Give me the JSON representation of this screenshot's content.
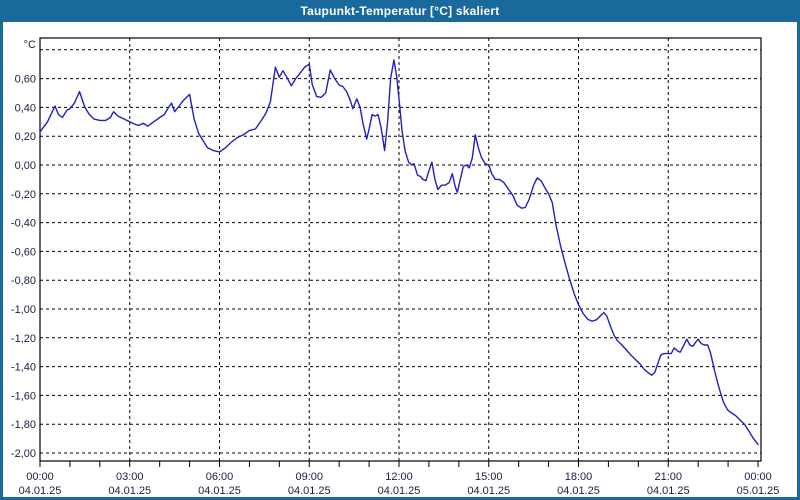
{
  "window": {
    "title": "Taupunkt-Temperatur [°C] skaliert"
  },
  "colors": {
    "titlebar_bg": "#19699c",
    "frame": "#19699c",
    "background": "#ffffff",
    "plot_border": "#000000",
    "grid": "#000000",
    "line": "#2020c0",
    "axis_text": "#16213e"
  },
  "chart_data": {
    "type": "line",
    "title": "Taupunkt-Temperatur [°C] skaliert",
    "ylabel": "°C",
    "xlabel": "",
    "legend": "none",
    "grid": "dashed",
    "ylim": [
      -2.06,
      0.885
    ],
    "xlim_hours": [
      0,
      24
    ],
    "minor_x_tick_every_hours": 1,
    "y_ticks": [
      {
        "v": 0.8,
        "label": ""
      },
      {
        "v": 0.6,
        "label": "0,60"
      },
      {
        "v": 0.4,
        "label": "0,40"
      },
      {
        "v": 0.2,
        "label": "0,20"
      },
      {
        "v": 0.0,
        "label": "0,00"
      },
      {
        "v": -0.2,
        "label": "-0,20"
      },
      {
        "v": -0.4,
        "label": "-0,40"
      },
      {
        "v": -0.6,
        "label": "-0,60"
      },
      {
        "v": -0.8,
        "label": "-0,80"
      },
      {
        "v": -1.0,
        "label": "-1,00"
      },
      {
        "v": -1.2,
        "label": "-1,20"
      },
      {
        "v": -1.4,
        "label": "-1,40"
      },
      {
        "v": -1.6,
        "label": "-1,60"
      },
      {
        "v": -1.8,
        "label": "-1,80"
      },
      {
        "v": -2.0,
        "label": "-2,00"
      }
    ],
    "x_ticks": [
      {
        "h": 0,
        "time": "00:00",
        "date": "04.01.25"
      },
      {
        "h": 3,
        "time": "03:00",
        "date": "04.01.25"
      },
      {
        "h": 6,
        "time": "06:00",
        "date": "04.01.25"
      },
      {
        "h": 9,
        "time": "09:00",
        "date": "04.01.25"
      },
      {
        "h": 12,
        "time": "12:00",
        "date": "04.01.25"
      },
      {
        "h": 15,
        "time": "15:00",
        "date": "04.01.25"
      },
      {
        "h": 18,
        "time": "18:00",
        "date": "04.01.25"
      },
      {
        "h": 21,
        "time": "21:00",
        "date": "04.01.25"
      },
      {
        "h": 24,
        "time": "00:00",
        "date": "05.01.25"
      }
    ],
    "series": [
      {
        "name": "Taupunkt-Temperatur skaliert",
        "color": "#2020c0",
        "points": [
          [
            0.0,
            0.23
          ],
          [
            0.25,
            0.3
          ],
          [
            0.5,
            0.41
          ],
          [
            0.62,
            0.35
          ],
          [
            0.75,
            0.33
          ],
          [
            0.9,
            0.38
          ],
          [
            1.0,
            0.39
          ],
          [
            1.15,
            0.43
          ],
          [
            1.32,
            0.51
          ],
          [
            1.5,
            0.4
          ],
          [
            1.65,
            0.35
          ],
          [
            1.8,
            0.32
          ],
          [
            2.0,
            0.31
          ],
          [
            2.2,
            0.31
          ],
          [
            2.35,
            0.33
          ],
          [
            2.46,
            0.37
          ],
          [
            2.6,
            0.34
          ],
          [
            2.8,
            0.32
          ],
          [
            3.0,
            0.3
          ],
          [
            3.15,
            0.285
          ],
          [
            3.3,
            0.275
          ],
          [
            3.45,
            0.29
          ],
          [
            3.6,
            0.27
          ],
          [
            3.8,
            0.3
          ],
          [
            4.0,
            0.33
          ],
          [
            4.15,
            0.35
          ],
          [
            4.3,
            0.4
          ],
          [
            4.4,
            0.43
          ],
          [
            4.5,
            0.37
          ],
          [
            4.65,
            0.41
          ],
          [
            4.8,
            0.45
          ],
          [
            5.0,
            0.49
          ],
          [
            5.15,
            0.32
          ],
          [
            5.3,
            0.22
          ],
          [
            5.45,
            0.17
          ],
          [
            5.6,
            0.12
          ],
          [
            5.8,
            0.1
          ],
          [
            6.0,
            0.09
          ],
          [
            6.2,
            0.12
          ],
          [
            6.4,
            0.16
          ],
          [
            6.6,
            0.19
          ],
          [
            6.8,
            0.21
          ],
          [
            7.0,
            0.24
          ],
          [
            7.2,
            0.25
          ],
          [
            7.4,
            0.31
          ],
          [
            7.55,
            0.36
          ],
          [
            7.7,
            0.44
          ],
          [
            7.87,
            0.68
          ],
          [
            8.0,
            0.61
          ],
          [
            8.12,
            0.655
          ],
          [
            8.25,
            0.61
          ],
          [
            8.4,
            0.55
          ],
          [
            8.55,
            0.6
          ],
          [
            8.7,
            0.64
          ],
          [
            8.85,
            0.68
          ],
          [
            9.0,
            0.7
          ],
          [
            9.1,
            0.56
          ],
          [
            9.25,
            0.475
          ],
          [
            9.4,
            0.47
          ],
          [
            9.55,
            0.5
          ],
          [
            9.7,
            0.66
          ],
          [
            9.85,
            0.6
          ],
          [
            10.0,
            0.555
          ],
          [
            10.12,
            0.545
          ],
          [
            10.25,
            0.51
          ],
          [
            10.37,
            0.45
          ],
          [
            10.46,
            0.39
          ],
          [
            10.59,
            0.46
          ],
          [
            10.7,
            0.4
          ],
          [
            10.8,
            0.285
          ],
          [
            10.92,
            0.18
          ],
          [
            11.0,
            0.25
          ],
          [
            11.1,
            0.35
          ],
          [
            11.2,
            0.34
          ],
          [
            11.3,
            0.35
          ],
          [
            11.4,
            0.26
          ],
          [
            11.52,
            0.1
          ],
          [
            11.62,
            0.3
          ],
          [
            11.72,
            0.6
          ],
          [
            11.83,
            0.73
          ],
          [
            11.92,
            0.62
          ],
          [
            12.0,
            0.46
          ],
          [
            12.1,
            0.24
          ],
          [
            12.2,
            0.1
          ],
          [
            12.32,
            0.02
          ],
          [
            12.42,
            0.0
          ],
          [
            12.5,
            0.01
          ],
          [
            12.62,
            -0.07
          ],
          [
            12.72,
            -0.08
          ],
          [
            12.8,
            -0.1
          ],
          [
            12.9,
            -0.11
          ],
          [
            13.0,
            -0.04
          ],
          [
            13.1,
            0.02
          ],
          [
            13.2,
            -0.1
          ],
          [
            13.3,
            -0.17
          ],
          [
            13.42,
            -0.14
          ],
          [
            13.55,
            -0.14
          ],
          [
            13.68,
            -0.12
          ],
          [
            13.78,
            -0.06
          ],
          [
            13.88,
            -0.15
          ],
          [
            13.95,
            -0.19
          ],
          [
            14.05,
            -0.1
          ],
          [
            14.15,
            -0.01
          ],
          [
            14.25,
            0.0
          ],
          [
            14.35,
            -0.02
          ],
          [
            14.45,
            0.05
          ],
          [
            14.55,
            0.21
          ],
          [
            14.65,
            0.12
          ],
          [
            14.76,
            0.05
          ],
          [
            14.88,
            0.01
          ],
          [
            15.0,
            0.0
          ],
          [
            15.1,
            -0.06
          ],
          [
            15.22,
            -0.1
          ],
          [
            15.35,
            -0.1
          ],
          [
            15.5,
            -0.12
          ],
          [
            15.65,
            -0.165
          ],
          [
            15.8,
            -0.21
          ],
          [
            15.95,
            -0.28
          ],
          [
            16.1,
            -0.3
          ],
          [
            16.22,
            -0.295
          ],
          [
            16.35,
            -0.24
          ],
          [
            16.5,
            -0.14
          ],
          [
            16.62,
            -0.09
          ],
          [
            16.75,
            -0.11
          ],
          [
            16.88,
            -0.16
          ],
          [
            17.0,
            -0.2
          ],
          [
            17.12,
            -0.26
          ],
          [
            17.25,
            -0.42
          ],
          [
            17.4,
            -0.56
          ],
          [
            17.55,
            -0.68
          ],
          [
            17.7,
            -0.79
          ],
          [
            17.85,
            -0.89
          ],
          [
            18.0,
            -0.97
          ],
          [
            18.15,
            -1.03
          ],
          [
            18.3,
            -1.07
          ],
          [
            18.45,
            -1.085
          ],
          [
            18.6,
            -1.075
          ],
          [
            18.72,
            -1.05
          ],
          [
            18.85,
            -1.025
          ],
          [
            18.95,
            -1.05
          ],
          [
            19.05,
            -1.11
          ],
          [
            19.18,
            -1.18
          ],
          [
            19.3,
            -1.22
          ],
          [
            19.45,
            -1.25
          ],
          [
            19.6,
            -1.285
          ],
          [
            19.75,
            -1.32
          ],
          [
            19.9,
            -1.35
          ],
          [
            20.05,
            -1.38
          ],
          [
            20.2,
            -1.42
          ],
          [
            20.32,
            -1.44
          ],
          [
            20.45,
            -1.46
          ],
          [
            20.55,
            -1.44
          ],
          [
            20.65,
            -1.38
          ],
          [
            20.75,
            -1.32
          ],
          [
            20.85,
            -1.31
          ],
          [
            21.0,
            -1.31
          ],
          [
            21.1,
            -1.31
          ],
          [
            21.2,
            -1.27
          ],
          [
            21.3,
            -1.29
          ],
          [
            21.4,
            -1.3
          ],
          [
            21.5,
            -1.26
          ],
          [
            21.62,
            -1.21
          ],
          [
            21.72,
            -1.25
          ],
          [
            21.82,
            -1.26
          ],
          [
            21.92,
            -1.23
          ],
          [
            22.0,
            -1.21
          ],
          [
            22.1,
            -1.24
          ],
          [
            22.22,
            -1.25
          ],
          [
            22.32,
            -1.25
          ],
          [
            22.42,
            -1.31
          ],
          [
            22.55,
            -1.43
          ],
          [
            22.7,
            -1.55
          ],
          [
            22.85,
            -1.65
          ],
          [
            22.98,
            -1.7
          ],
          [
            23.1,
            -1.72
          ],
          [
            23.25,
            -1.74
          ],
          [
            23.4,
            -1.77
          ],
          [
            23.55,
            -1.8
          ],
          [
            23.7,
            -1.85
          ],
          [
            23.85,
            -1.9
          ],
          [
            24.0,
            -1.94
          ]
        ]
      }
    ]
  }
}
